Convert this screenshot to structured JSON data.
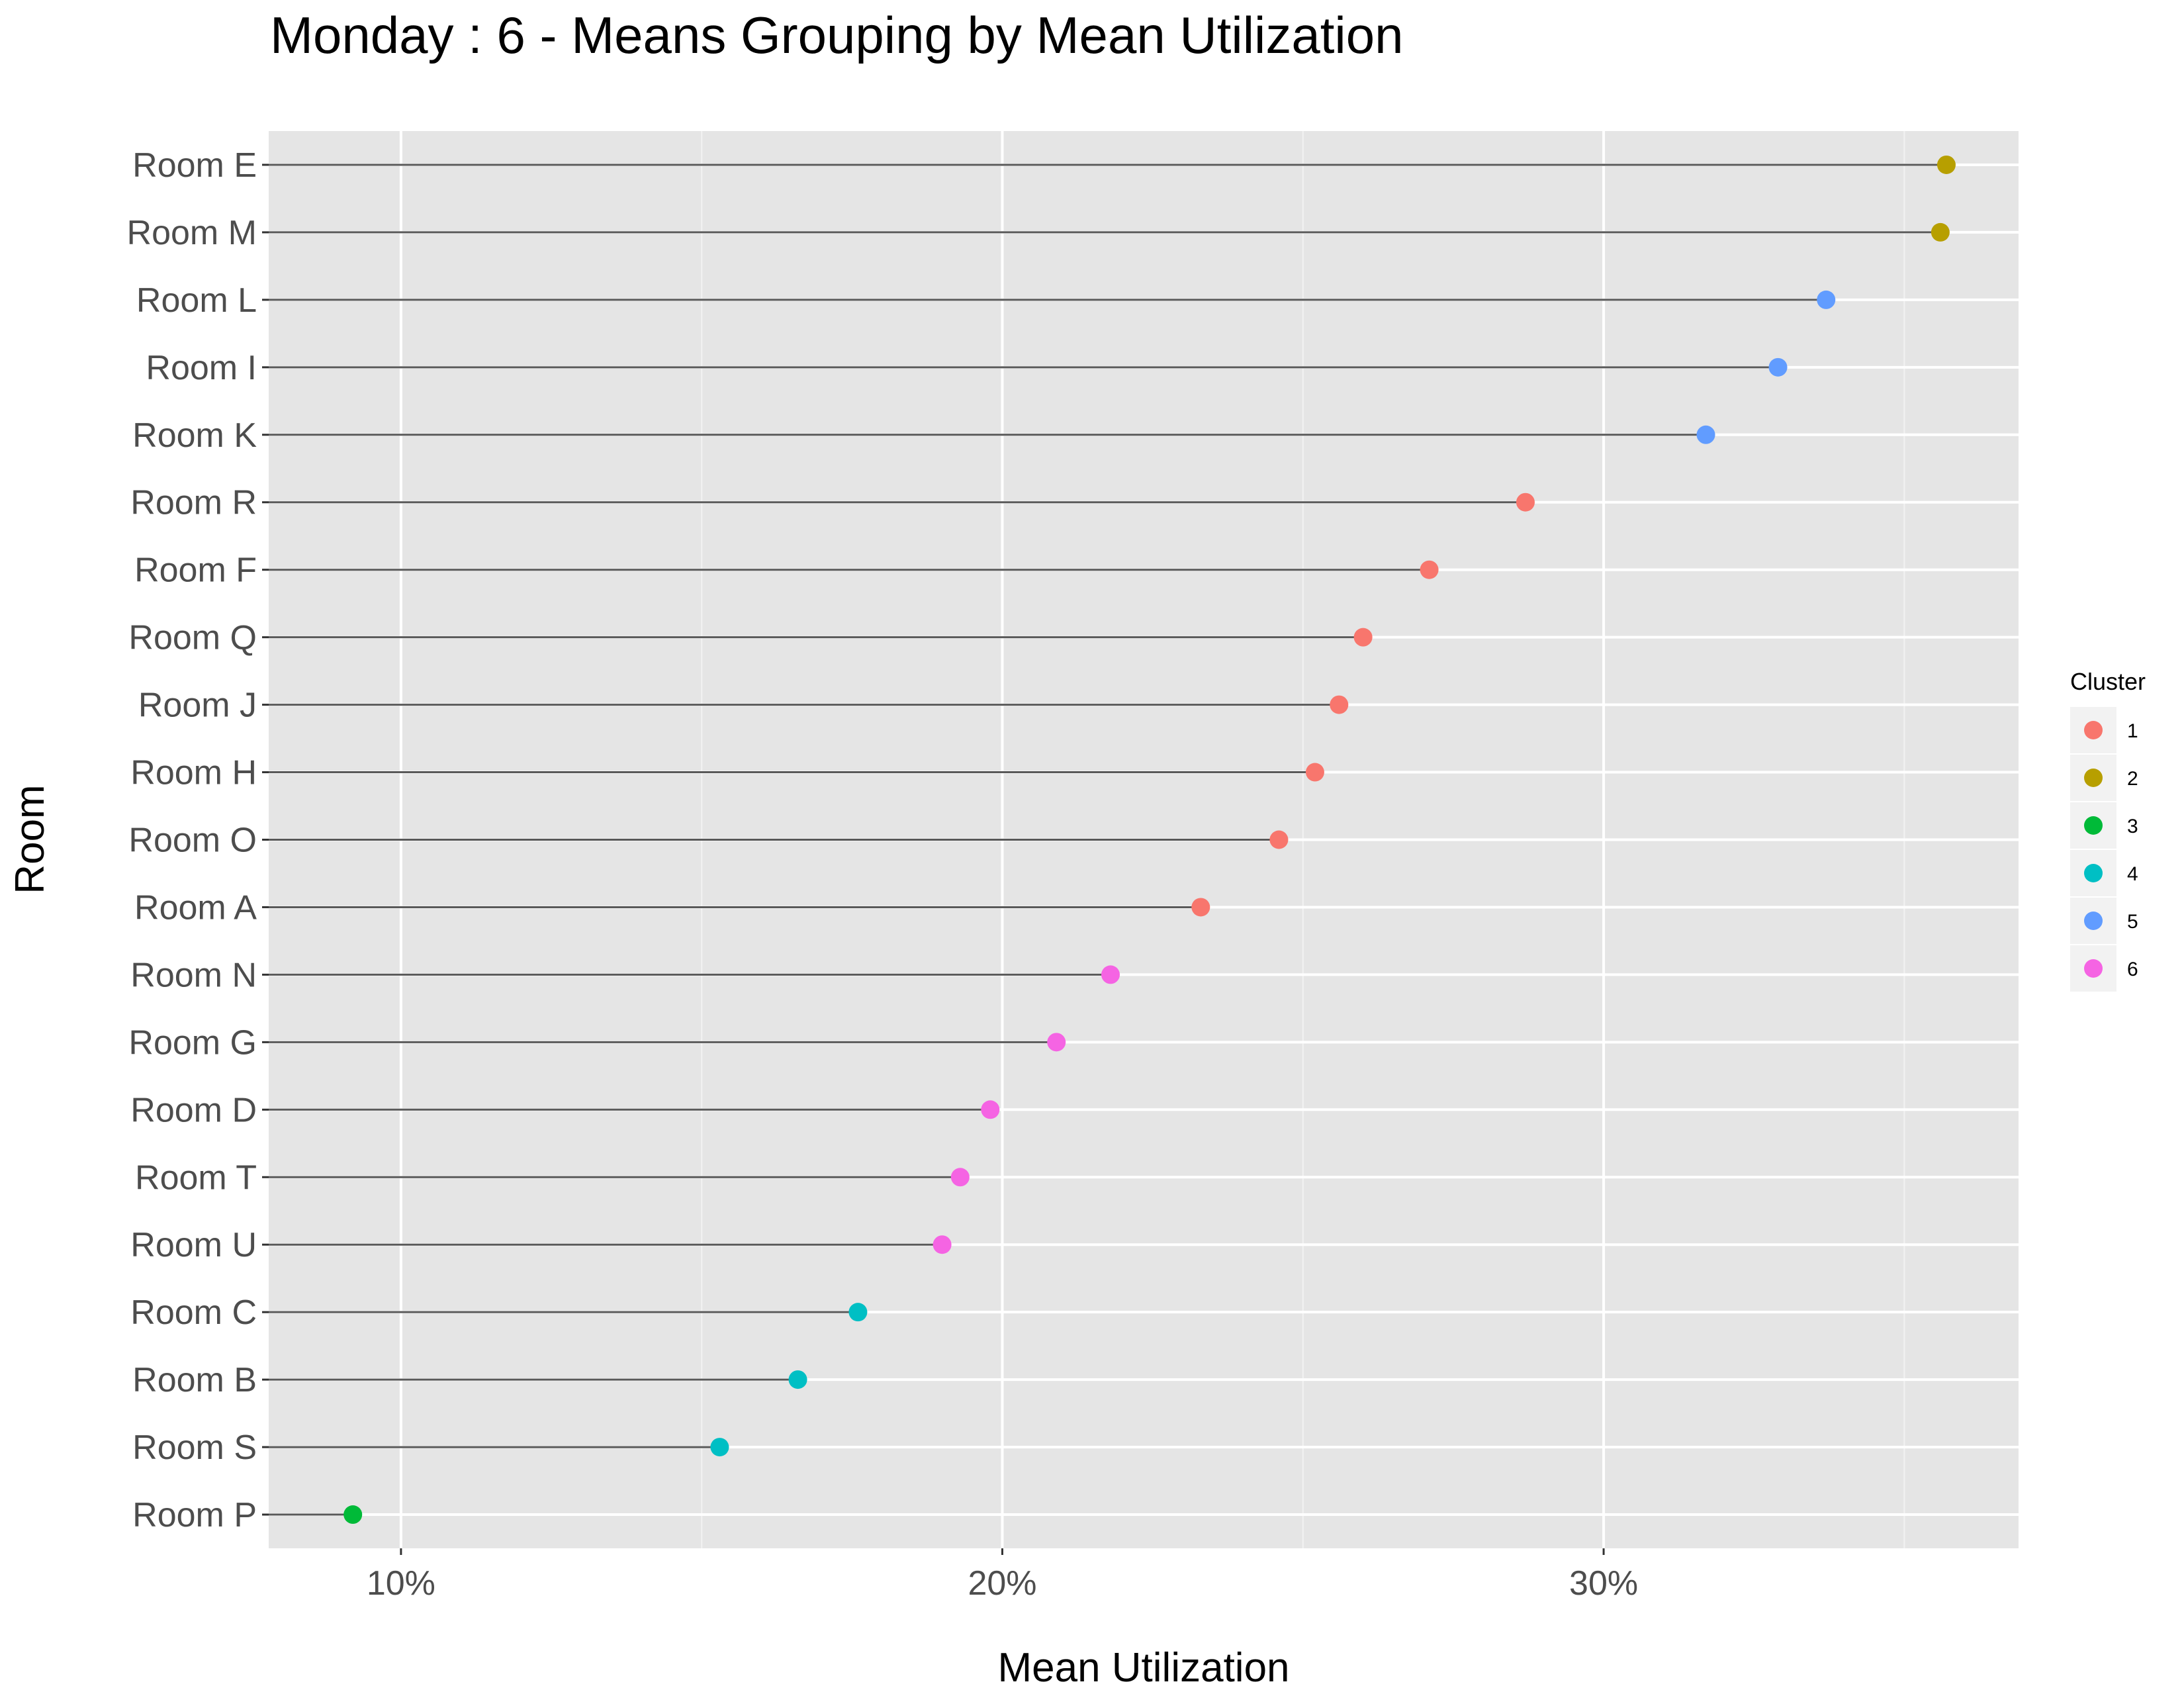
{
  "chart_data": {
    "type": "scatter",
    "style": "lollipop",
    "title": "Monday : 6 - Means Grouping by Mean Utilization",
    "xlabel": "Mean Utilization",
    "ylabel": "Room",
    "xlim": [
      7.8,
      36.9
    ],
    "x_ticks": [
      10,
      20,
      30
    ],
    "x_tick_labels": [
      "10%",
      "20%",
      "30%"
    ],
    "grid": true,
    "legend": {
      "title": "Cluster",
      "position": "right",
      "entries": [
        "1",
        "2",
        "3",
        "4",
        "5",
        "6"
      ]
    },
    "cluster_colors": {
      "1": "#F8766D",
      "2": "#B79F00",
      "3": "#00BA38",
      "4": "#00BFC4",
      "5": "#619CFF",
      "6": "#F564E3"
    },
    "points": [
      {
        "room": "Room E",
        "value": 35.7,
        "cluster": "2"
      },
      {
        "room": "Room M",
        "value": 35.6,
        "cluster": "2"
      },
      {
        "room": "Room L",
        "value": 33.7,
        "cluster": "5"
      },
      {
        "room": "Room I",
        "value": 32.9,
        "cluster": "5"
      },
      {
        "room": "Room K",
        "value": 31.7,
        "cluster": "5"
      },
      {
        "room": "Room R",
        "value": 28.7,
        "cluster": "1"
      },
      {
        "room": "Room F",
        "value": 27.1,
        "cluster": "1"
      },
      {
        "room": "Room Q",
        "value": 26.0,
        "cluster": "1"
      },
      {
        "room": "Room J",
        "value": 25.6,
        "cluster": "1"
      },
      {
        "room": "Room H",
        "value": 25.2,
        "cluster": "1"
      },
      {
        "room": "Room O",
        "value": 24.6,
        "cluster": "1"
      },
      {
        "room": "Room A",
        "value": 23.3,
        "cluster": "1"
      },
      {
        "room": "Room N",
        "value": 21.8,
        "cluster": "6"
      },
      {
        "room": "Room G",
        "value": 20.9,
        "cluster": "6"
      },
      {
        "room": "Room D",
        "value": 19.8,
        "cluster": "6"
      },
      {
        "room": "Room T",
        "value": 19.3,
        "cluster": "6"
      },
      {
        "room": "Room U",
        "value": 19.0,
        "cluster": "6"
      },
      {
        "room": "Room C",
        "value": 17.6,
        "cluster": "4"
      },
      {
        "room": "Room B",
        "value": 16.6,
        "cluster": "4"
      },
      {
        "room": "Room S",
        "value": 15.3,
        "cluster": "4"
      },
      {
        "room": "Room P",
        "value": 9.2,
        "cluster": "3"
      }
    ]
  }
}
